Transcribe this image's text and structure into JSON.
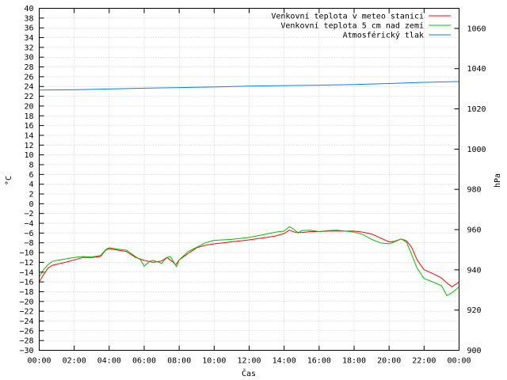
{
  "chart_data": {
    "type": "line",
    "title": "",
    "xlabel": "Čas",
    "ylabel": "°C",
    "y2label": "hPa",
    "legend_position": "top-right",
    "grid": true,
    "xlim": [
      0,
      24
    ],
    "ylim": [
      -30,
      40
    ],
    "y2lim": [
      900,
      1070
    ],
    "x_ticks": [
      "00:00",
      "02:00",
      "04:00",
      "06:00",
      "08:00",
      "10:00",
      "12:00",
      "14:00",
      "16:00",
      "18:00",
      "20:00",
      "22:00",
      "00:00"
    ],
    "y_ticks": [
      40,
      38,
      36,
      34,
      32,
      30,
      28,
      26,
      24,
      22,
      20,
      18,
      16,
      14,
      12,
      10,
      8,
      6,
      4,
      2,
      0,
      -2,
      -4,
      -6,
      -8,
      -10,
      -12,
      -14,
      -16,
      -18,
      -20,
      -22,
      -24,
      -26,
      -28,
      -30
    ],
    "y2_ticks": [
      1060,
      1040,
      1020,
      1000,
      980,
      960,
      940,
      920,
      900
    ],
    "series": [
      {
        "name": "Venkovní teplota v meteo stanici",
        "axis": "left",
        "color": "#ff0000",
        "x": [
          0,
          0.25,
          0.5,
          0.75,
          1,
          1.5,
          2,
          2.5,
          3,
          3.5,
          3.8,
          4,
          4.5,
          5,
          5.5,
          6,
          6.5,
          7,
          7.3,
          7.6,
          7.8,
          8,
          8.5,
          9,
          9.5,
          10,
          11,
          12,
          13,
          13.5,
          14,
          14.3,
          14.6,
          15,
          15.5,
          16,
          16.5,
          17,
          17.5,
          18,
          18.5,
          19,
          19.5,
          20,
          20.3,
          20.7,
          21,
          21.3,
          21.6,
          22,
          22.5,
          23,
          23.3,
          23.6,
          24
        ],
        "y": [
          -16,
          -14.5,
          -13.2,
          -12.6,
          -12.4,
          -12,
          -11.5,
          -11,
          -11,
          -10.8,
          -9.5,
          -9.2,
          -9.5,
          -9.8,
          -11,
          -11.6,
          -12,
          -11.7,
          -11,
          -11.8,
          -12.5,
          -11.5,
          -10.2,
          -9,
          -8.5,
          -8.2,
          -7.8,
          -7.4,
          -6.9,
          -6.6,
          -6.1,
          -5.4,
          -5.8,
          -5.9,
          -5.7,
          -5.7,
          -5.6,
          -5.6,
          -5.6,
          -5.6,
          -5.8,
          -6.2,
          -7,
          -7.8,
          -7.7,
          -7.2,
          -7.6,
          -9,
          -11.5,
          -13.5,
          -14.3,
          -15.2,
          -16.2,
          -17,
          -16
        ]
      },
      {
        "name": "Venkovní teplota 5 cm nad zemí",
        "axis": "left",
        "color": "#00c000",
        "x": [
          0,
          0.25,
          0.5,
          0.75,
          1,
          1.5,
          2,
          2.5,
          3,
          3.5,
          3.8,
          4,
          4.5,
          5,
          5.5,
          5.8,
          6,
          6.3,
          6.5,
          7,
          7.3,
          7.5,
          7.7,
          7.85,
          8,
          8.5,
          9,
          9.5,
          10,
          11,
          12,
          13,
          13.5,
          14,
          14.3,
          14.5,
          14.8,
          15,
          15.5,
          16,
          16.5,
          17,
          17.5,
          18,
          18.5,
          19,
          19.5,
          20,
          20.3,
          20.7,
          21,
          21.3,
          21.6,
          22,
          22.5,
          23,
          23.3,
          23.6,
          24
        ],
        "y": [
          -15,
          -13.5,
          -12.5,
          -11.8,
          -11.6,
          -11.3,
          -11,
          -10.8,
          -10.9,
          -10.6,
          -9.4,
          -9,
          -9.3,
          -9.5,
          -10.8,
          -11.5,
          -12.8,
          -11.8,
          -11.6,
          -12.2,
          -11,
          -10.8,
          -12,
          -12.9,
          -11.5,
          -9.8,
          -8.9,
          -8,
          -7.5,
          -7.3,
          -6.9,
          -6.2,
          -5.8,
          -5.6,
          -4.7,
          -5.1,
          -6,
          -5.5,
          -5.4,
          -5.7,
          -5.5,
          -5.4,
          -5.6,
          -5.8,
          -6.3,
          -7.3,
          -8,
          -8.2,
          -7.8,
          -7.2,
          -7.9,
          -10.5,
          -13.2,
          -15.3,
          -16,
          -16.8,
          -18.8,
          -18.2,
          -17
        ]
      },
      {
        "name": "Atmosférický tlak",
        "axis": "right",
        "color": "#0080ff",
        "x": [
          0,
          2,
          4,
          6,
          8,
          10,
          12,
          14,
          16,
          18,
          20,
          22,
          24
        ],
        "y": [
          1029.4,
          1029.5,
          1029.9,
          1030.3,
          1030.6,
          1030.9,
          1031.3,
          1031.6,
          1031.8,
          1032.1,
          1032.6,
          1033.2,
          1033.6
        ]
      }
    ]
  }
}
